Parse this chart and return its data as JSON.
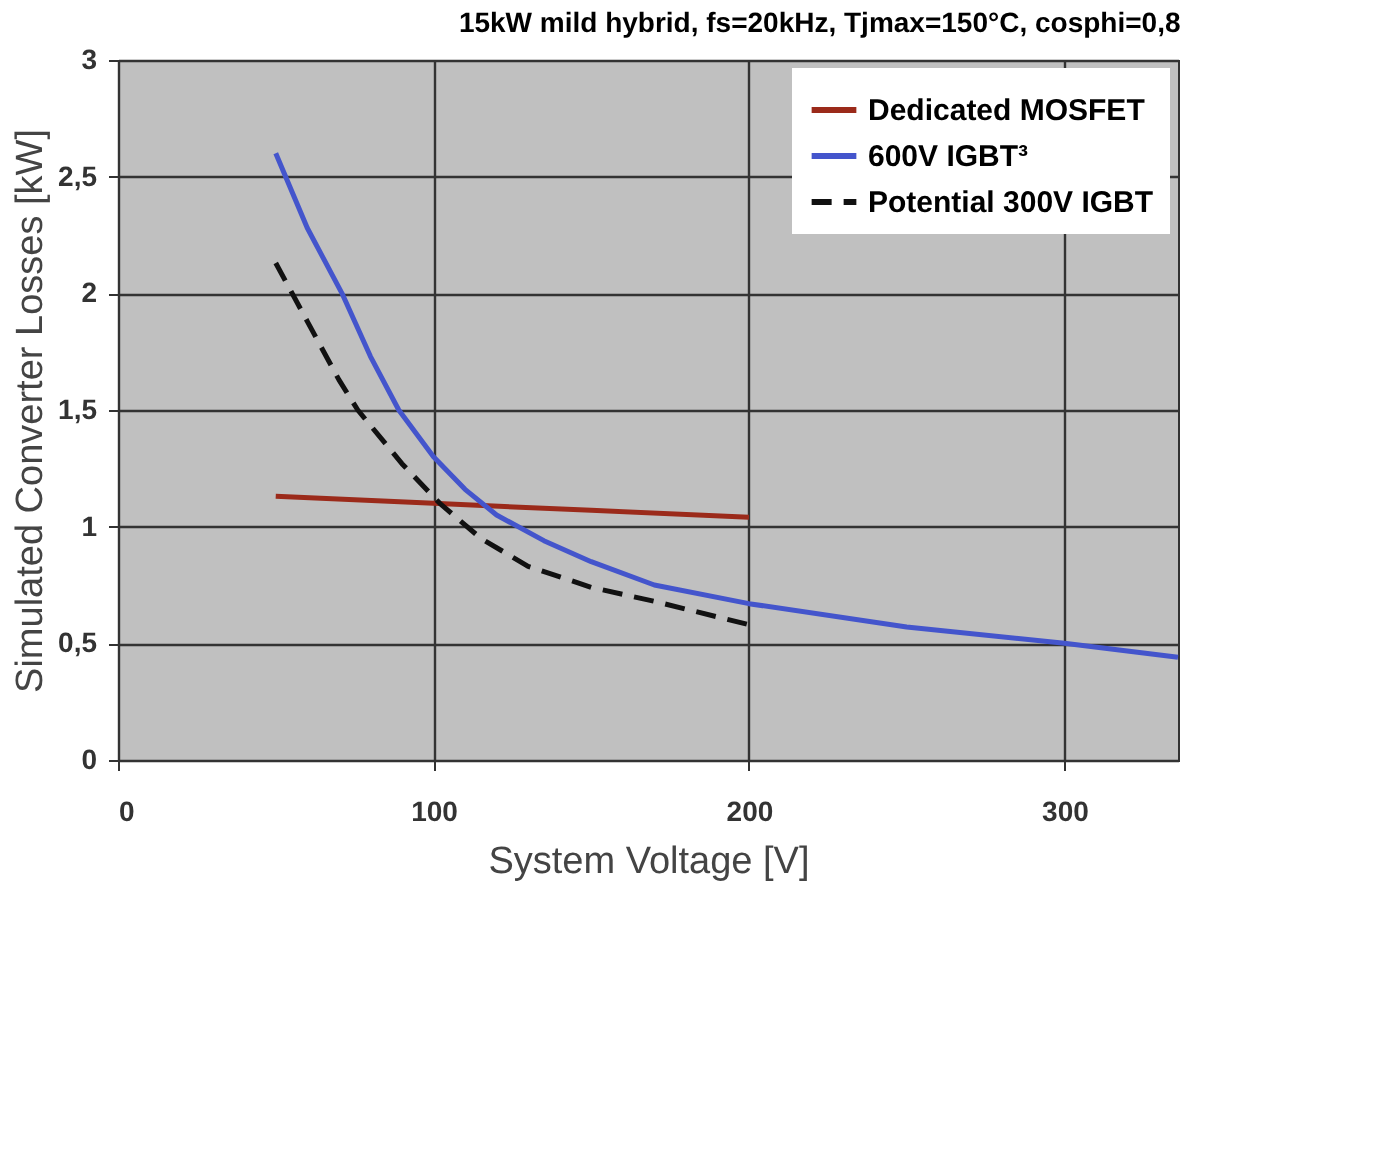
{
  "chart_data": {
    "type": "line",
    "title": "15kW mild hybrid, fs=20kHz, Tjmax=150°C, cosphi=0,8",
    "xlabel": "System Voltage [V]",
    "ylabel": "Simulated Converter Losses [kW]",
    "xlim": [
      0,
      336
    ],
    "xticks": [
      0,
      100,
      200,
      300
    ],
    "ylim": [
      0,
      3
    ],
    "yticks": [
      0,
      {
        "value": 0.5,
        "label": "0,5"
      },
      1,
      {
        "value": 1.5,
        "label": "1,5"
      },
      2,
      {
        "value": 2.5,
        "label": "2,5"
      },
      3
    ],
    "grid": true,
    "legend": "top right",
    "marker": "none",
    "series": [
      {
        "name": "Dedicated MOSFET",
        "color": "#9b2a1a",
        "line_style": "solid",
        "x": [
          50,
          100,
          150,
          200
        ],
        "values": [
          1.13,
          1.1,
          1.07,
          1.04
        ]
      },
      {
        "name": "600V IGBT³",
        "color": "#4455cc",
        "line_style": "solid",
        "x": [
          50,
          60,
          71,
          80,
          89,
          100,
          110,
          120,
          135,
          150,
          170,
          200,
          250,
          300,
          336
        ],
        "values": [
          2.6,
          2.28,
          2.0,
          1.73,
          1.5,
          1.3,
          1.16,
          1.05,
          0.94,
          0.85,
          0.75,
          0.67,
          0.57,
          0.5,
          0.44
        ]
      },
      {
        "name": "Potential 300V IGBT",
        "color": "#111111",
        "line_style": "dashed",
        "x": [
          50,
          60,
          70,
          76,
          90,
          102,
          115,
          130,
          150,
          170,
          200
        ],
        "values": [
          2.13,
          1.88,
          1.63,
          1.5,
          1.27,
          1.1,
          0.95,
          0.83,
          0.74,
          0.68,
          0.58
        ]
      }
    ]
  }
}
